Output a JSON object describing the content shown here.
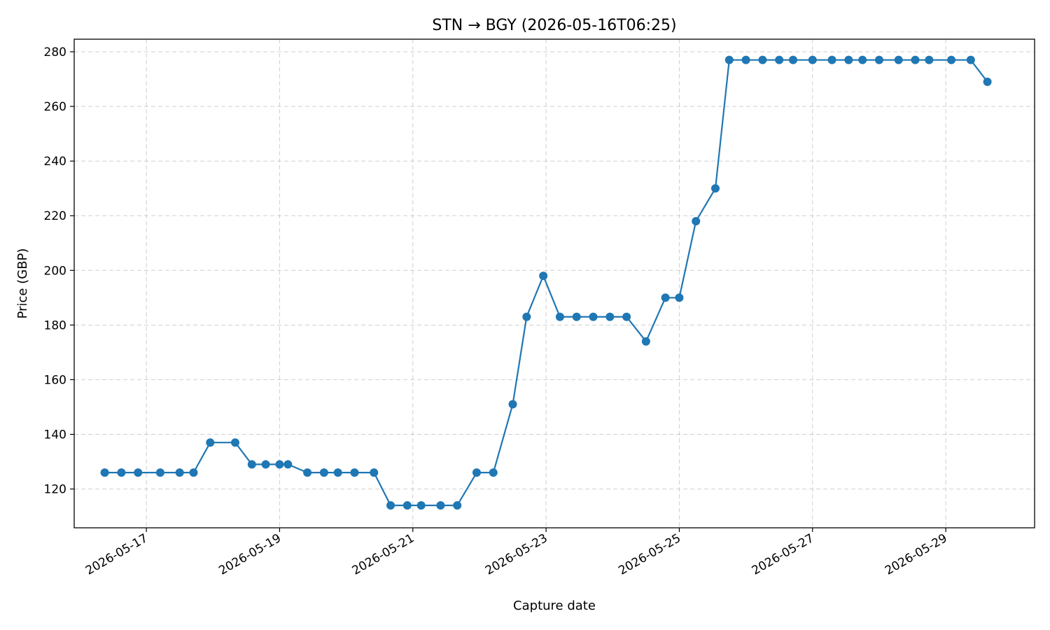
{
  "chart_data": {
    "type": "line",
    "title": "STN → BGY (2026-05-16T06:25)",
    "xlabel": "Capture date",
    "ylabel": "Price (GBP)",
    "x_ticks": [
      "2026-05-17",
      "2026-05-19",
      "2026-05-21",
      "2026-05-23",
      "2026-05-25",
      "2026-05-27",
      "2026-05-29"
    ],
    "y_ticks": [
      120,
      140,
      160,
      180,
      200,
      220,
      240,
      260,
      280
    ],
    "ylim": [
      105.8,
      284.6
    ],
    "xlim": [
      "2026-05-15T22:00",
      "2026-05-30T08:00"
    ],
    "grid": true,
    "line_color": "#1f77b4",
    "x": [
      "2026-05-16T09:00",
      "2026-05-16T15:00",
      "2026-05-16T21:00",
      "2026-05-17T05:00",
      "2026-05-17T12:00",
      "2026-05-17T17:00",
      "2026-05-17T23:00",
      "2026-05-18T08:00",
      "2026-05-18T14:00",
      "2026-05-18T19:00",
      "2026-05-19T00:00",
      "2026-05-19T03:00",
      "2026-05-19T10:00",
      "2026-05-19T16:00",
      "2026-05-19T21:00",
      "2026-05-20T03:00",
      "2026-05-20T10:00",
      "2026-05-20T16:00",
      "2026-05-20T22:00",
      "2026-05-21T03:00",
      "2026-05-21T10:00",
      "2026-05-21T16:00",
      "2026-05-21T23:00",
      "2026-05-22T05:00",
      "2026-05-22T12:00",
      "2026-05-22T17:00",
      "2026-05-22T23:00",
      "2026-05-23T05:00",
      "2026-05-23T11:00",
      "2026-05-23T17:00",
      "2026-05-23T23:00",
      "2026-05-24T05:00",
      "2026-05-24T12:00",
      "2026-05-24T19:00",
      "2026-05-25T00:00",
      "2026-05-25T06:00",
      "2026-05-25T13:00",
      "2026-05-25T18:00",
      "2026-05-26T00:00",
      "2026-05-26T06:00",
      "2026-05-26T12:00",
      "2026-05-26T17:00",
      "2026-05-27T00:00",
      "2026-05-27T07:00",
      "2026-05-27T13:00",
      "2026-05-27T18:00",
      "2026-05-28T00:00",
      "2026-05-28T07:00",
      "2026-05-28T13:00",
      "2026-05-28T18:00",
      "2026-05-29T02:00",
      "2026-05-29T09:00",
      "2026-05-29T15:00"
    ],
    "series": [
      {
        "values": [
          126,
          126,
          126,
          126,
          126,
          126,
          137,
          137,
          129,
          129,
          129,
          129,
          126,
          126,
          126,
          126,
          126,
          114,
          114,
          114,
          114,
          114,
          126,
          126,
          151,
          183,
          198,
          183,
          183,
          183,
          183,
          183,
          174,
          190,
          190,
          218,
          230,
          277,
          277,
          277,
          277,
          277,
          277,
          277,
          277,
          277,
          277,
          277,
          277,
          277,
          277,
          277,
          269
        ]
      }
    ]
  }
}
